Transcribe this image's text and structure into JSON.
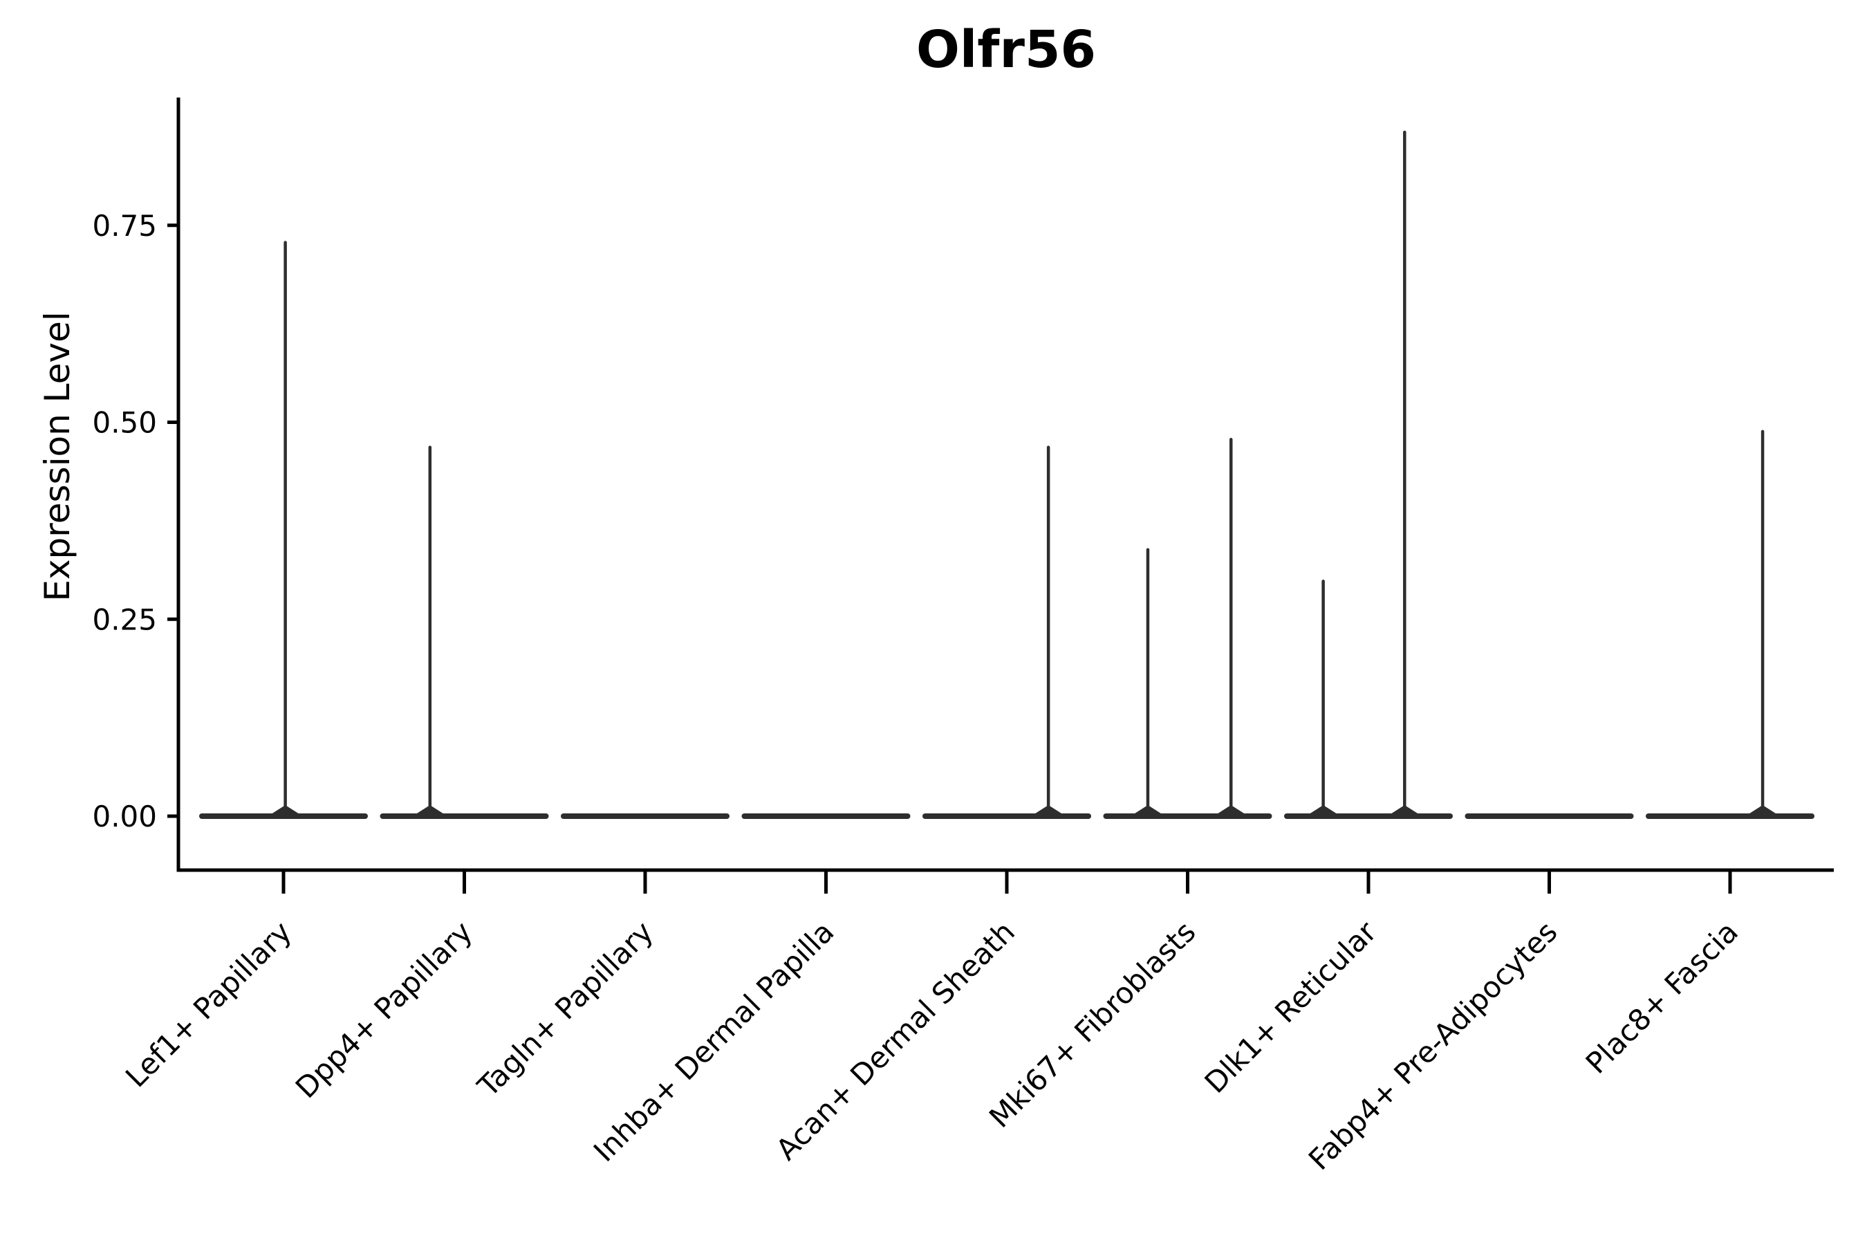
{
  "chart_data": {
    "type": "violin",
    "title": "Olfr56",
    "ylabel": "Expression Level",
    "xlabel": "",
    "background_color": "#ffffff",
    "axis_color": "#000000",
    "violin_color": "#2e2e2e",
    "grid": false,
    "legend": "none",
    "ylim": [
      0,
      0.91
    ],
    "y_tick_values": [
      0.0,
      0.25,
      0.5,
      0.75
    ],
    "y_tick_labels": [
      "0.00",
      "0.25",
      "0.50",
      "0.75"
    ],
    "x_tick_rotation_deg": 45,
    "categories": [
      "Lef1+ Papillary",
      "Dpp4+ Papillary",
      "Tagln+ Papillary",
      "Inhba+ Dermal Papilla",
      "Acan+ Dermal Sheath",
      "Mki67+ Fibroblasts",
      "Dlk1+ Reticular",
      "Fabp4+ Pre-Adipocytes",
      "Plac8+ Fascia"
    ],
    "series": [
      {
        "category": "Lef1+ Papillary",
        "baseline_value": 0,
        "spikes": [
          {
            "offset_frac": 0.01,
            "value": 0.73
          }
        ]
      },
      {
        "category": "Dpp4+ Papillary",
        "baseline_value": 0,
        "spikes": [
          {
            "offset_frac": -0.19,
            "value": 0.47
          }
        ]
      },
      {
        "category": "Tagln+ Papillary",
        "baseline_value": 0,
        "spikes": []
      },
      {
        "category": "Inhba+ Dermal Papilla",
        "baseline_value": 0,
        "spikes": []
      },
      {
        "category": "Acan+ Dermal Sheath",
        "baseline_value": 0,
        "spikes": [
          {
            "offset_frac": 0.23,
            "value": 0.47
          }
        ]
      },
      {
        "category": "Mki67+ Fibroblasts",
        "baseline_value": 0,
        "spikes": [
          {
            "offset_frac": -0.22,
            "value": 0.34
          },
          {
            "offset_frac": 0.24,
            "value": 0.48
          }
        ]
      },
      {
        "category": "Dlk1+ Reticular",
        "baseline_value": 0,
        "spikes": [
          {
            "offset_frac": -0.25,
            "value": 0.3
          },
          {
            "offset_frac": 0.2,
            "value": 0.87
          }
        ]
      },
      {
        "category": "Fabp4+ Pre-Adipocytes",
        "baseline_value": 0,
        "spikes": []
      },
      {
        "category": "Plac8+ Fascia",
        "baseline_value": 0,
        "spikes": [
          {
            "offset_frac": 0.18,
            "value": 0.49
          }
        ]
      }
    ]
  }
}
